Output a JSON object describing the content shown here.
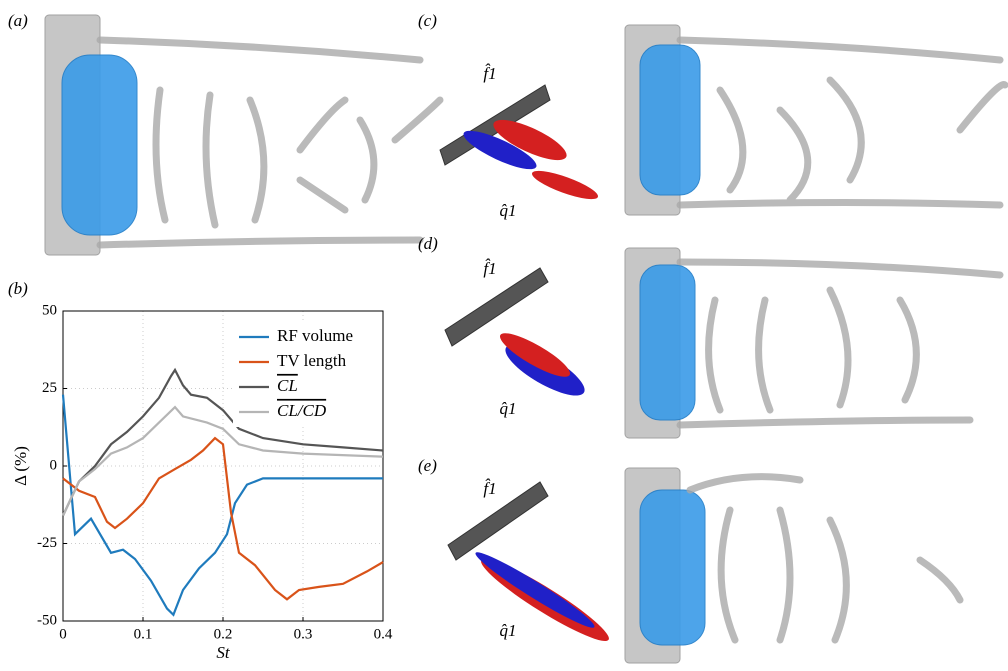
{
  "panels": {
    "a": "(a)",
    "b": "(b)",
    "c": "(c)",
    "d": "(d)",
    "e": "(e)"
  },
  "mode_labels": {
    "c": [
      "f̂1",
      "q̂1"
    ],
    "d": [
      "f̂1",
      "q̂1"
    ],
    "e": [
      "f̂1",
      "q̂1"
    ]
  },
  "chart_data": {
    "type": "line",
    "xlabel": "St",
    "ylabel": "Δ (%)",
    "xlim": [
      0,
      0.4
    ],
    "ylim": [
      -50,
      50
    ],
    "xticks": [
      0,
      0.1,
      0.2,
      0.3,
      0.4
    ],
    "yticks": [
      -50,
      -25,
      0,
      25,
      50
    ],
    "grid": true,
    "legend": "upper right",
    "series": [
      {
        "name": "RF volume",
        "color": "#1f7bbd",
        "x": [
          0,
          0.015,
          0.035,
          0.06,
          0.075,
          0.09,
          0.11,
          0.13,
          0.138,
          0.15,
          0.17,
          0.19,
          0.205,
          0.215,
          0.23,
          0.25,
          0.3,
          0.35,
          0.4
        ],
        "values": [
          23,
          -22,
          -17,
          -28,
          -27,
          -30,
          -37,
          -46,
          -48,
          -40,
          -33,
          -28,
          -22,
          -12,
          -6,
          -4,
          -4,
          -4,
          -4
        ]
      },
      {
        "name": "TV length",
        "color": "#d95319",
        "x": [
          0,
          0.02,
          0.04,
          0.055,
          0.065,
          0.08,
          0.1,
          0.12,
          0.14,
          0.16,
          0.175,
          0.19,
          0.2,
          0.21,
          0.22,
          0.24,
          0.265,
          0.28,
          0.295,
          0.32,
          0.35,
          0.38,
          0.4
        ],
        "values": [
          -4,
          -8,
          -10,
          -18,
          -20,
          -17,
          -12,
          -4,
          -1,
          2,
          5,
          9,
          7,
          -15,
          -28,
          -32,
          -40,
          -43,
          -40,
          -39,
          -38,
          -34,
          -31
        ]
      },
      {
        "name": "CL",
        "color": "#555555",
        "x": [
          0,
          0.02,
          0.04,
          0.06,
          0.08,
          0.1,
          0.12,
          0.135,
          0.14,
          0.15,
          0.16,
          0.18,
          0.2,
          0.22,
          0.25,
          0.3,
          0.35,
          0.4
        ],
        "values": [
          -16,
          -5,
          0,
          7,
          11,
          16,
          22,
          29,
          31,
          26,
          23,
          22,
          18,
          12,
          9,
          7,
          6,
          5
        ]
      },
      {
        "name": "CL/CD",
        "color": "#b5b5b5",
        "x": [
          0,
          0.02,
          0.04,
          0.06,
          0.08,
          0.1,
          0.12,
          0.14,
          0.15,
          0.18,
          0.2,
          0.22,
          0.25,
          0.3,
          0.4
        ],
        "values": [
          -16,
          -5,
          -1,
          4,
          6,
          9,
          14,
          19,
          16,
          14,
          12,
          7,
          5,
          4,
          3
        ]
      }
    ]
  }
}
